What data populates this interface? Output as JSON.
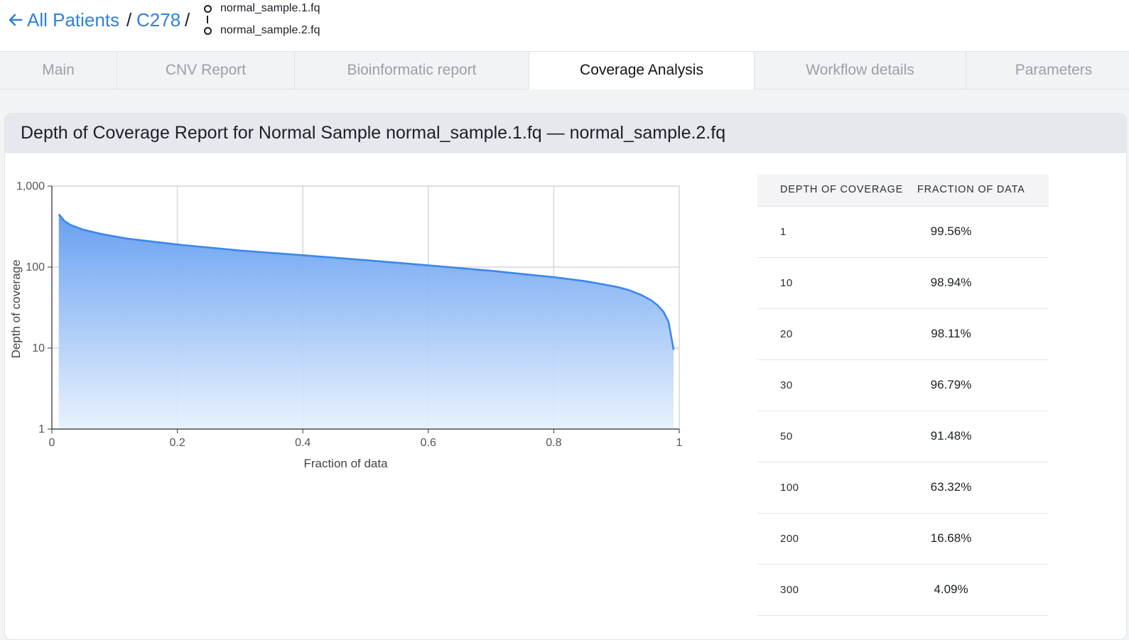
{
  "header": {
    "back_label": "All Patients",
    "separator": "/",
    "patient_id": "C278",
    "files": [
      "normal_sample.1.fq",
      "normal_sample.2.fq"
    ]
  },
  "tabs": [
    {
      "label": "Main",
      "active": false
    },
    {
      "label": "CNV Report",
      "active": false
    },
    {
      "label": "Bioinformatic report",
      "active": false
    },
    {
      "label": "Coverage Analysis",
      "active": true
    },
    {
      "label": "Workflow details",
      "active": false
    },
    {
      "label": "Parameters",
      "active": false
    }
  ],
  "report": {
    "title": "Depth of Coverage Report for Normal Sample normal_sample.1.fq — normal_sample.2.fq"
  },
  "chart_data": {
    "type": "area",
    "title": "",
    "xlabel": "Fraction of data",
    "ylabel": "Depth of coverage",
    "xlim": [
      0,
      1
    ],
    "ylim": [
      1,
      1000
    ],
    "yscale": "log",
    "xticks": [
      "0",
      "0.2",
      "0.4",
      "0.6",
      "0.8",
      "1"
    ],
    "yticks": [
      "1",
      "10",
      "100",
      "1,000"
    ],
    "grid": true,
    "legend": "none",
    "color": "#3b87ea",
    "series": [
      {
        "x": [
          0.011,
          0.02,
          0.03,
          0.05,
          0.08,
          0.12,
          0.2,
          0.3,
          0.4,
          0.5,
          0.6,
          0.7,
          0.8,
          0.85,
          0.88,
          0.9,
          0.92,
          0.94,
          0.955,
          0.965,
          0.975,
          0.983,
          0.991
        ],
        "y": [
          450,
          370,
          330,
          290,
          255,
          225,
          190,
          160,
          140,
          122,
          105,
          90,
          75,
          67,
          61,
          57,
          52,
          45,
          39,
          34,
          28,
          21,
          9.5
        ]
      }
    ]
  },
  "coverage_table": {
    "headers": [
      "DEPTH OF COVERAGE",
      "FRACTION OF DATA"
    ],
    "rows": [
      {
        "depth": "1",
        "fraction": "99.56%"
      },
      {
        "depth": "10",
        "fraction": "98.94%"
      },
      {
        "depth": "20",
        "fraction": "98.11%"
      },
      {
        "depth": "30",
        "fraction": "96.79%"
      },
      {
        "depth": "50",
        "fraction": "91.48%"
      },
      {
        "depth": "100",
        "fraction": "63.32%"
      },
      {
        "depth": "200",
        "fraction": "16.68%"
      },
      {
        "depth": "300",
        "fraction": "4.09%"
      }
    ]
  }
}
